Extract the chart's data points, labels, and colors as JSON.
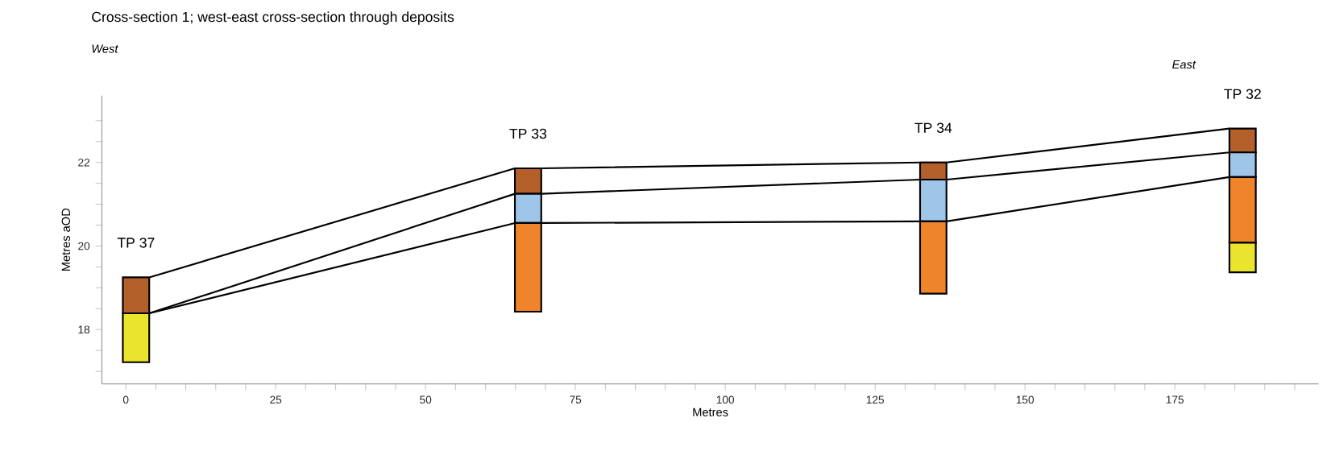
{
  "chart_data": {
    "type": "bar",
    "title": "Cross-section 1; west-east cross-section through deposits",
    "xlabel": "Metres",
    "ylabel": "Metres aOD",
    "x": [
      1.7,
      67.1,
      134.7,
      186.3
    ],
    "series": [
      {
        "color": "#b3602a",
        "base": [
          18.39,
          21.25,
          21.59,
          22.24
        ],
        "values": [
          0.86,
          0.61,
          0.41,
          0.57
        ]
      },
      {
        "color": "#9fc5e8",
        "base": [
          null,
          20.55,
          20.59,
          21.65
        ],
        "values": [
          null,
          0.7,
          1.0,
          0.59
        ]
      },
      {
        "color": "#f0842a",
        "base": [
          null,
          18.43,
          18.86,
          20.08
        ],
        "values": [
          null,
          2.12,
          1.73,
          1.57
        ]
      },
      {
        "color": "#e9e52c",
        "base": [
          17.22,
          null,
          null,
          19.37
        ],
        "values": [
          1.17,
          null,
          null,
          0.71
        ]
      },
      {
        "type": "line",
        "color": "#000000",
        "x": [
          3.9,
          64.9,
          69.3,
          132.6,
          136.9,
          184.1
        ],
        "values": [
          19.25,
          21.86,
          21.86,
          22.0,
          22.0,
          22.81
        ]
      },
      {
        "type": "line",
        "color": "#000000",
        "x": [
          3.9,
          64.9,
          69.3,
          132.6,
          136.9,
          184.1
        ],
        "values": [
          18.39,
          21.25,
          21.25,
          21.59,
          21.59,
          22.24
        ]
      },
      {
        "type": "line",
        "color": "#000000",
        "x": [
          3.9,
          64.9,
          69.3,
          132.6,
          136.9,
          184.1
        ],
        "values": [
          18.39,
          20.55,
          20.55,
          20.59,
          20.59,
          21.65
        ]
      }
    ],
    "annotations": [
      {
        "text": "TP 37",
        "x": 1.7,
        "y": 19.25
      },
      {
        "text": "TP 33",
        "x": 67.1,
        "y": 21.86
      },
      {
        "text": "TP 34",
        "x": 134.7,
        "y": 22.0
      },
      {
        "text": "TP 32",
        "x": 186.3,
        "y": 22.81
      },
      "West",
      "East"
    ],
    "xlim": [
      -4,
      199
    ],
    "ylim": [
      16.7,
      23.6
    ],
    "xticks": [
      0,
      {
        "value": 5,
        "label": null
      },
      {
        "value": 10,
        "label": null
      },
      {
        "value": 15,
        "label": null
      },
      {
        "value": 20,
        "label": null
      },
      25,
      {
        "value": 30,
        "label": null
      },
      {
        "value": 35,
        "label": null
      },
      {
        "value": 40,
        "label": null
      },
      {
        "value": 45,
        "label": null
      },
      50,
      {
        "value": 55,
        "label": null
      },
      {
        "value": 60,
        "label": null
      },
      {
        "value": 65,
        "label": null
      },
      {
        "value": 70,
        "label": null
      },
      75,
      {
        "value": 80,
        "label": null
      },
      {
        "value": 85,
        "label": null
      },
      {
        "value": 90,
        "label": null
      },
      {
        "value": 95,
        "label": null
      },
      100,
      {
        "value": 105,
        "label": null
      },
      {
        "value": 110,
        "label": null
      },
      {
        "value": 115,
        "label": null
      },
      {
        "value": 120,
        "label": null
      },
      125,
      {
        "value": 130,
        "label": null
      },
      {
        "value": 135,
        "label": null
      },
      {
        "value": 140,
        "label": null
      },
      {
        "value": 145,
        "label": null
      },
      150,
      {
        "value": 155,
        "label": null
      },
      {
        "value": 160,
        "label": null
      },
      {
        "value": 165,
        "label": null
      },
      {
        "value": 170,
        "label": null
      },
      175,
      {
        "value": 180,
        "label": null
      },
      {
        "value": 185,
        "label": null
      },
      {
        "value": 190,
        "label": null
      },
      {
        "value": 195,
        "label": null
      }
    ],
    "yticks": [
      {
        "value": 17,
        "label": null
      },
      {
        "value": 17.5,
        "label": null
      },
      18,
      {
        "value": 18.5,
        "label": null
      },
      {
        "value": 19,
        "label": null
      },
      {
        "value": 19.5,
        "label": null
      },
      20,
      {
        "value": 20.5,
        "label": null
      },
      {
        "value": 21,
        "label": null
      },
      {
        "value": 21.5,
        "label": null
      },
      22,
      {
        "value": 22.5,
        "label": null
      },
      {
        "value": 23,
        "label": null
      }
    ],
    "grid": false,
    "legend": false,
    "marker": "none"
  }
}
